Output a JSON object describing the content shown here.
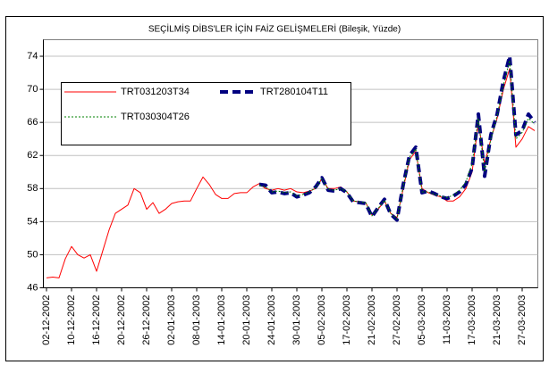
{
  "chart_data": {
    "type": "line",
    "title": "SEÇİLMİŞ DİBS'LER İÇİN FAİZ GELİŞMELERİ (Bileşik, Yüzde)",
    "categories": [
      "02-12-2002",
      null,
      null,
      null,
      "10-12-2002",
      null,
      null,
      null,
      "16-12-2002",
      null,
      null,
      null,
      "20-12-2002",
      null,
      null,
      null,
      "26-12-2002",
      null,
      null,
      null,
      "02-01-2003",
      null,
      null,
      null,
      "08-01-2003",
      null,
      null,
      null,
      "14-01-2003",
      null,
      null,
      null,
      "20-01-2003",
      null,
      null,
      null,
      "24-01-2003",
      null,
      null,
      null,
      "30-01-2003",
      null,
      null,
      null,
      "05-02-2003",
      null,
      null,
      null,
      "17-02-2003",
      null,
      null,
      null,
      "21-02-2003",
      null,
      null,
      null,
      "27-02-2003",
      null,
      null,
      null,
      "05-03-2003",
      null,
      null,
      null,
      "11-03-2003",
      null,
      null,
      null,
      "17-03-2003",
      null,
      null,
      null,
      "21-03-2003",
      null,
      null,
      null,
      "27-03-2003",
      null,
      null
    ],
    "series": [
      {
        "name": "TRT031203T34",
        "color": "#ff0000",
        "style": "solid",
        "values": [
          47.2,
          47.3,
          47.2,
          49.5,
          51,
          50,
          49.6,
          50,
          48,
          50.5,
          53,
          55,
          55.5,
          56,
          58,
          57.5,
          55.5,
          56.3,
          55,
          55.5,
          56.2,
          56.4,
          56.5,
          56.5,
          58,
          59.4,
          58.5,
          57.3,
          56.8,
          56.8,
          57.4,
          57.5,
          57.5,
          58.2,
          58.6,
          58,
          57.8,
          58,
          57.8,
          58,
          57.6,
          57.5,
          57.7,
          58,
          59.2,
          58,
          58,
          58.2,
          57.6,
          56.5,
          56.4,
          56.3,
          54.8,
          55.5,
          56.5,
          55,
          54.5,
          58,
          61.5,
          62.5,
          58,
          57.5,
          57.2,
          57,
          56.5,
          56.5,
          57,
          58,
          60,
          66,
          61,
          64,
          66.5,
          70,
          72.5,
          63,
          64,
          65.5,
          65
        ]
      },
      {
        "name": "TRT280104T11",
        "color": "#000080",
        "style": "dashed",
        "values": [
          null,
          null,
          null,
          null,
          null,
          null,
          null,
          null,
          null,
          null,
          null,
          null,
          null,
          null,
          null,
          null,
          null,
          null,
          null,
          null,
          null,
          null,
          null,
          null,
          null,
          null,
          null,
          null,
          null,
          null,
          null,
          null,
          null,
          null,
          58.5,
          58.4,
          57.5,
          57.6,
          57.4,
          57.5,
          57,
          57.2,
          57.5,
          58.2,
          59.3,
          57.8,
          57.7,
          58,
          57.5,
          56.4,
          56.3,
          56.2,
          54.6,
          55.7,
          56.7,
          54.9,
          54.2,
          58.5,
          62,
          63,
          57.5,
          57.7,
          57.4,
          57,
          56.8,
          57.1,
          57.6,
          58.5,
          60.5,
          67,
          59.5,
          64.5,
          67,
          71,
          74,
          64.5,
          65,
          67,
          66
        ]
      },
      {
        "name": "TRT030304T26",
        "color": "#008000",
        "style": "dotted",
        "values": [
          null,
          null,
          null,
          null,
          null,
          null,
          null,
          null,
          null,
          null,
          null,
          null,
          null,
          null,
          null,
          null,
          null,
          null,
          null,
          null,
          null,
          null,
          null,
          null,
          null,
          null,
          null,
          null,
          null,
          null,
          null,
          null,
          null,
          null,
          58.4,
          58.2,
          57.6,
          57.7,
          57.5,
          57.6,
          57.1,
          57.3,
          57.6,
          58.1,
          59.2,
          57.9,
          57.8,
          58,
          57.6,
          56.5,
          56.4,
          56.3,
          54.7,
          55.6,
          56.6,
          55,
          54.3,
          58.3,
          61.8,
          62.8,
          57.6,
          57.6,
          57.3,
          57.1,
          56.9,
          57.2,
          57.8,
          58.8,
          61,
          66.5,
          60,
          64,
          66.8,
          70.5,
          73.5,
          64,
          64.8,
          66.5,
          65.8
        ]
      }
    ],
    "ylim": [
      46,
      76
    ],
    "yticks": [
      46,
      50,
      54,
      58,
      62,
      66,
      70,
      74
    ],
    "grid": true,
    "legend": "upper left"
  }
}
